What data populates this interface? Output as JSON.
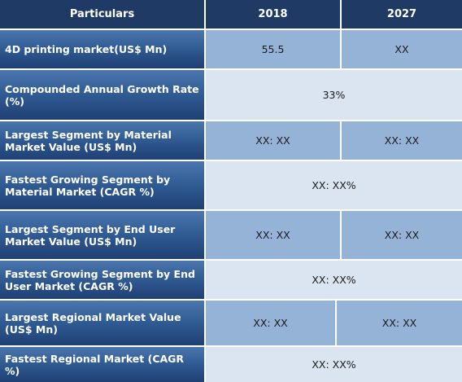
{
  "header": {
    "col_label": "Particulars",
    "col_2018": "2018",
    "col_2027": "2027"
  },
  "rows": [
    {
      "label": "4D printing market(US$ Mn)",
      "v2018": "55.5",
      "v2027": "XX"
    },
    {
      "label": "Compounded Annual Growth Rate (%)",
      "merged": "33%"
    },
    {
      "label": "Largest Segment by Material Market Value (US$ Mn)",
      "v2018": "XX: XX",
      "v2027": "XX: XX"
    },
    {
      "label": "Fastest Growing Segment by Material Market (CAGR %)",
      "merged": "XX: XX%"
    },
    {
      "label": "Largest Segment by End User Market Value (US$ Mn)",
      "v2018": "XX: XX",
      "v2027": "XX: XX"
    },
    {
      "label": "Fastest Growing Segment by End User Market (CAGR %)",
      "merged": "XX: XX%"
    },
    {
      "label": "Largest Regional Market Value (US$ Mn)",
      "v2018": "XX: XX",
      "v2027": "XX: XX"
    },
    {
      "label": "Fastest Regional Market (CAGR %)",
      "merged": "XX: XX%"
    }
  ]
}
